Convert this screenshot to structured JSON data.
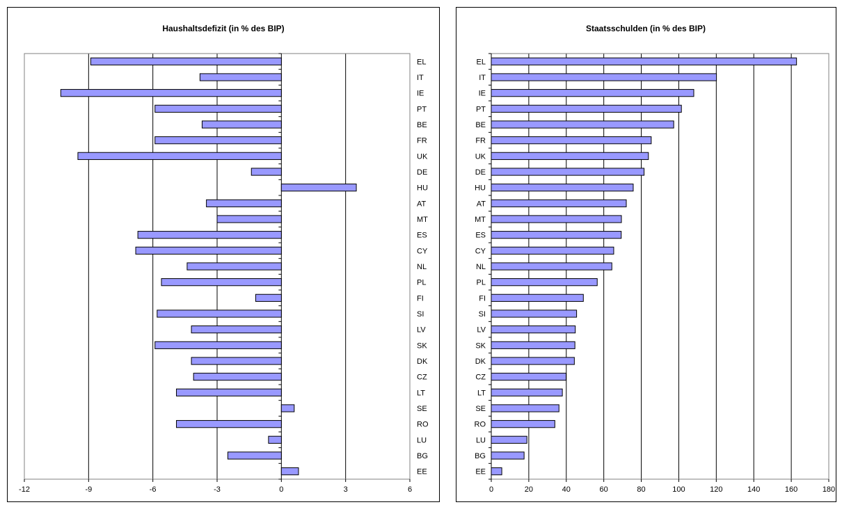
{
  "chart_data": [
    {
      "type": "bar",
      "orientation": "horizontal",
      "title": "Haushaltsdefizit (in % des BIP)",
      "categories": [
        "EL",
        "IT",
        "IE",
        "PT",
        "BE",
        "FR",
        "UK",
        "DE",
        "HU",
        "AT",
        "MT",
        "ES",
        "CY",
        "NL",
        "PL",
        "FI",
        "SI",
        "LV",
        "SK",
        "DK",
        "CZ",
        "LT",
        "SE",
        "RO",
        "LU",
        "BG",
        "EE"
      ],
      "values": [
        -8.9,
        -3.8,
        -10.3,
        -5.9,
        -3.7,
        -5.9,
        -9.5,
        -1.4,
        3.5,
        -3.5,
        -3.0,
        -6.7,
        -6.8,
        -4.4,
        -5.6,
        -1.2,
        -5.8,
        -4.2,
        -5.9,
        -4.2,
        -4.1,
        -4.9,
        0.6,
        -4.9,
        -0.6,
        -2.5,
        0.8
      ],
      "xlim": [
        -12,
        6
      ],
      "xticks": [
        -12,
        -9,
        -6,
        -3,
        0,
        3,
        6
      ],
      "xgrid": [
        -9,
        -6,
        -3,
        3
      ],
      "grid": true,
      "legend": "none",
      "bar_color": "#9999ff"
    },
    {
      "type": "bar",
      "orientation": "horizontal",
      "title": "Staatsschulden (in % des BIP)",
      "categories": [
        "EL",
        "IT",
        "IE",
        "PT",
        "BE",
        "FR",
        "UK",
        "DE",
        "HU",
        "AT",
        "MT",
        "ES",
        "CY",
        "NL",
        "PL",
        "FI",
        "SI",
        "LV",
        "SK",
        "DK",
        "CZ",
        "LT",
        "SE",
        "RO",
        "LU",
        "BG",
        "EE"
      ],
      "values": [
        162.8,
        120.1,
        108.0,
        101.4,
        97.3,
        85.3,
        83.8,
        81.5,
        75.7,
        72.0,
        69.4,
        69.3,
        65.3,
        64.3,
        56.5,
        49.1,
        45.5,
        44.8,
        44.6,
        44.3,
        39.9,
        37.9,
        36.1,
        33.9,
        19.0,
        17.5,
        5.6
      ],
      "xlim": [
        0,
        180
      ],
      "xticks": [
        0,
        20,
        40,
        60,
        80,
        100,
        120,
        140,
        160,
        180
      ],
      "xgrid": [
        20,
        40,
        60,
        80,
        100,
        120,
        140,
        160,
        180
      ],
      "grid": true,
      "legend": "none",
      "bar_color": "#9999ff"
    }
  ]
}
